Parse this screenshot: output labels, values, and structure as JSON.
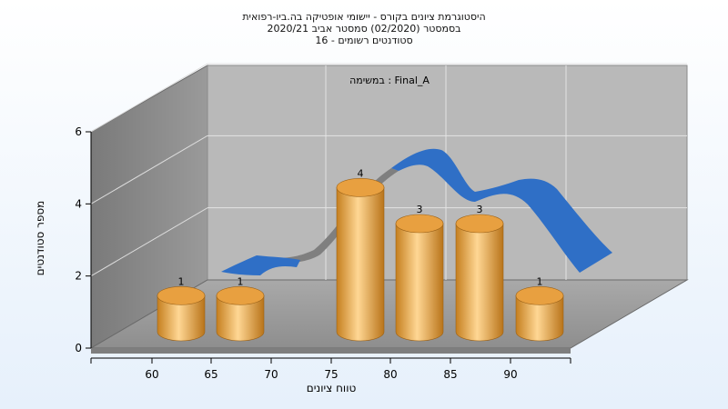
{
  "chart_data": {
    "type": "bar",
    "title_lines": [
      "היסטוגרמת ציונים בקורס - יישומי אופטיקה בה.ביו-רפואית",
      "בסמסטר  (02/2020)  סמסטר אביב 2020/21",
      "סטודנטים רשומים - 16"
    ],
    "inner_label": "במשימה : Final_A",
    "xlabel": "טווח ציונים",
    "ylabel": "מספר סטודנטים",
    "x_ticks": [
      "60",
      "65",
      "70",
      "75",
      "80",
      "85",
      "90"
    ],
    "y_ticks": [
      "0",
      "2",
      "4",
      "6"
    ],
    "ylim": [
      0,
      6
    ],
    "bins": [
      "55-60",
      "60-65",
      "75-80",
      "80-85",
      "85-90",
      "90-95"
    ],
    "values": [
      1,
      1,
      4,
      3,
      3,
      1
    ],
    "bar_labels": [
      "1",
      "1",
      "4",
      "3",
      "3",
      "1"
    ],
    "colors": {
      "bar": "#e8a040",
      "curve": "#2f6fc6",
      "wall": "#8c8c8c",
      "back_wall": "#b8b8b8"
    }
  }
}
